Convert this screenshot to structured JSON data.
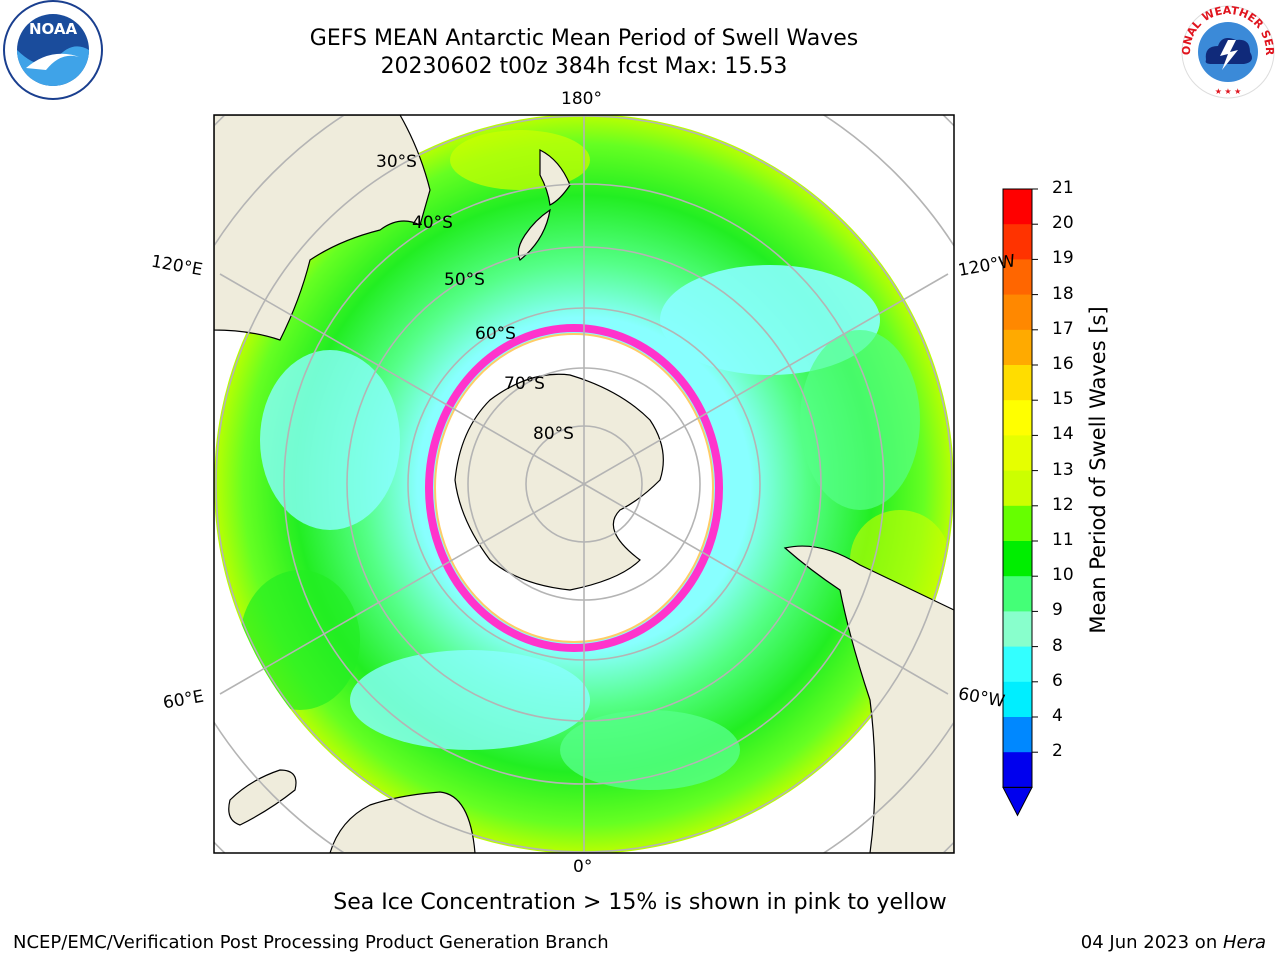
{
  "header": {
    "title": "GEFS MEAN Antarctic Mean Period of Swell Waves",
    "subtitle": "20230602 t00z 384h fcst   Max: 15.53"
  },
  "logos": [
    {
      "name": "noaa-logo-icon",
      "text": "NOAA"
    },
    {
      "name": "nws-logo-icon",
      "text": "NATIONAL WEATHER SERVICE"
    }
  ],
  "map": {
    "projection": "south-polar-stereographic",
    "center": "South Pole",
    "lon_labels": [
      "180°",
      "0°",
      "120°E",
      "120°W",
      "60°E",
      "60°W"
    ],
    "lat_labels": [
      "30°S",
      "40°S",
      "50°S",
      "60°S",
      "70°S",
      "80°S"
    ],
    "colors": {
      "land": "#efecdc",
      "grid": "#b4b4b4",
      "ice_pink": "#ff33cc",
      "ice_yellow": "#ffcc66"
    }
  },
  "colorbar": {
    "label": "Mean Period of Swell Waves [s]",
    "ticks": [
      "21",
      "20",
      "19",
      "18",
      "17",
      "16",
      "15",
      "14",
      "13",
      "12",
      "11",
      "10",
      "9",
      "8",
      "6",
      "4",
      "2"
    ],
    "colors": [
      "#ff0000",
      "#ff3300",
      "#ff6600",
      "#ff8800",
      "#ffaa00",
      "#ffdd00",
      "#ffff00",
      "#e6ff00",
      "#ccff00",
      "#66ff00",
      "#00ee00",
      "#44ff77",
      "#88ffcc",
      "#33ffff",
      "#00eeff",
      "#0088ff",
      "#0000ee"
    ],
    "under_color": "#0000ee",
    "extend": "min"
  },
  "notes": {
    "ice": "Sea Ice Concentration > 15% is shown in pink to yellow"
  },
  "footer": {
    "left": "NCEP/EMC/Verification Post Processing Product Generation Branch",
    "date": "04 Jun 2023 on ",
    "host": "Hera"
  }
}
